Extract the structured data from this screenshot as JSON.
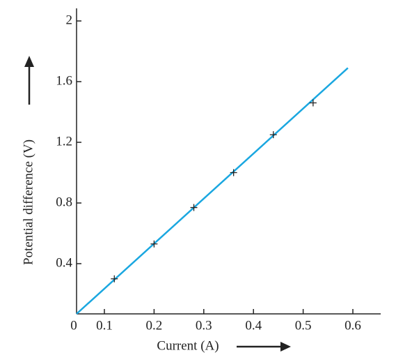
{
  "chart_data": {
    "type": "scatter",
    "x_label": "Current (A)",
    "y_label": "Potential difference (V)",
    "origin_label": "0",
    "xlim": [
      0.044,
      0.656
    ],
    "ylim": [
      0.069,
      2.083
    ],
    "xticks": [
      0.1,
      0.2,
      0.3,
      0.4,
      0.5,
      0.6
    ],
    "yticks": [
      0.4,
      0.8,
      1.2,
      1.6,
      2.0
    ],
    "series": [
      {
        "x": [
          0.12,
          0.2,
          0.28,
          0.36,
          0.44,
          0.52
        ],
        "values": [
          0.3,
          0.53,
          0.77,
          1.0,
          1.25,
          1.46
        ],
        "color": "#222222"
      }
    ],
    "fit_line": {
      "x": [
        0.044,
        0.59
      ],
      "values": [
        0.069,
        1.69
      ],
      "color": "#1aa7e0"
    }
  }
}
